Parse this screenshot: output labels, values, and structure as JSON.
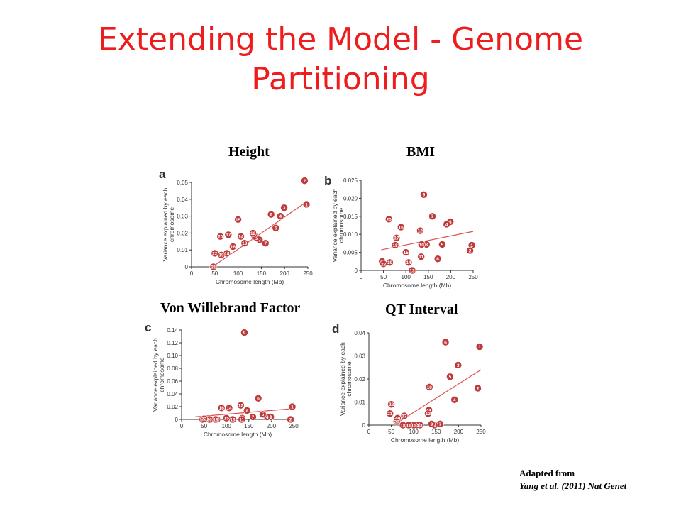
{
  "slide": {
    "title_line1": "Extending the Model - Genome",
    "title_line2": "Partitioning"
  },
  "captions": {
    "height": "Height",
    "bmi": "BMI",
    "vwf": "Von Willebrand Factor",
    "qt": "QT Interval"
  },
  "credit": {
    "line1": "Adapted from",
    "line2": "Yang et al. (2011) Nat Genet"
  },
  "colors": {
    "title": "#ee1c1c",
    "point_fill": "#bf3b3b",
    "point_label": "#ffffff",
    "regression_line": "#d9534f",
    "axis": "#333333"
  },
  "chart_data": [
    {
      "type": "scatter",
      "panel": "a",
      "xlabel": "Chromosome length (Mb)",
      "ylabel": "Variance explained by each chromosome",
      "xlim": [
        0,
        250
      ],
      "ylim": [
        0,
        0.05
      ],
      "xticks": [
        "0",
        "50",
        "100",
        "150",
        "200",
        "250"
      ],
      "yticks": [
        "0",
        "0.01",
        "0.02",
        "0.03",
        "0.04",
        "0.05"
      ],
      "points": [
        {
          "label": "1",
          "x": 247,
          "y": 0.037
        },
        {
          "label": "2",
          "x": 243,
          "y": 0.051
        },
        {
          "label": "3",
          "x": 199,
          "y": 0.035
        },
        {
          "label": "4",
          "x": 191,
          "y": 0.03
        },
        {
          "label": "5",
          "x": 181,
          "y": 0.023
        },
        {
          "label": "6",
          "x": 171,
          "y": 0.031
        },
        {
          "label": "7",
          "x": 159,
          "y": 0.014
        },
        {
          "label": "8",
          "x": 146,
          "y": 0.016
        },
        {
          "label": "9",
          "x": 140,
          "y": 0.017
        },
        {
          "label": "10",
          "x": 135,
          "y": 0.018
        },
        {
          "label": "11",
          "x": 134,
          "y": 0.019
        },
        {
          "label": "12",
          "x": 132,
          "y": 0.02
        },
        {
          "label": "13",
          "x": 114,
          "y": 0.014
        },
        {
          "label": "14",
          "x": 106,
          "y": 0.018
        },
        {
          "label": "15",
          "x": 100,
          "y": 0.028
        },
        {
          "label": "16",
          "x": 89,
          "y": 0.012
        },
        {
          "label": "17",
          "x": 79,
          "y": 0.019
        },
        {
          "label": "18",
          "x": 76,
          "y": 0.008
        },
        {
          "label": "19",
          "x": 64,
          "y": 0.007
        },
        {
          "label": "20",
          "x": 62,
          "y": 0.018
        },
        {
          "label": "21",
          "x": 47,
          "y": 0.0
        },
        {
          "label": "22",
          "x": 50,
          "y": 0.008
        }
      ],
      "fit_line": {
        "x": [
          45,
          250
        ],
        "y": [
          0.0,
          0.039
        ]
      }
    },
    {
      "type": "scatter",
      "panel": "b",
      "xlabel": "Chromosome length (Mb)",
      "ylabel": "Variance explained by each chromosome",
      "xlim": [
        0,
        250
      ],
      "ylim": [
        0,
        0.025
      ],
      "xticks": [
        "0",
        "50",
        "100",
        "150",
        "200",
        "250"
      ],
      "yticks": [
        "0",
        "0.005",
        "0.010",
        "0.015",
        "0.020",
        "0.025"
      ],
      "points": [
        {
          "label": "1",
          "x": 247,
          "y": 0.007
        },
        {
          "label": "2",
          "x": 243,
          "y": 0.0055
        },
        {
          "label": "3",
          "x": 199,
          "y": 0.0135
        },
        {
          "label": "4",
          "x": 191,
          "y": 0.0128
        },
        {
          "label": "5",
          "x": 181,
          "y": 0.0072
        },
        {
          "label": "6",
          "x": 171,
          "y": 0.0032
        },
        {
          "label": "7",
          "x": 159,
          "y": 0.015
        },
        {
          "label": "8",
          "x": 146,
          "y": 0.0072
        },
        {
          "label": "9",
          "x": 140,
          "y": 0.021
        },
        {
          "label": "10",
          "x": 135,
          "y": 0.0072
        },
        {
          "label": "11",
          "x": 134,
          "y": 0.0038
        },
        {
          "label": "12",
          "x": 132,
          "y": 0.011
        },
        {
          "label": "13",
          "x": 114,
          "y": 0.0
        },
        {
          "label": "14",
          "x": 106,
          "y": 0.0022
        },
        {
          "label": "15",
          "x": 100,
          "y": 0.005
        },
        {
          "label": "16",
          "x": 89,
          "y": 0.012
        },
        {
          "label": "17",
          "x": 79,
          "y": 0.009
        },
        {
          "label": "18",
          "x": 76,
          "y": 0.007
        },
        {
          "label": "19",
          "x": 64,
          "y": 0.0022
        },
        {
          "label": "20",
          "x": 62,
          "y": 0.0142
        },
        {
          "label": "21",
          "x": 47,
          "y": 0.0025
        },
        {
          "label": "22",
          "x": 50,
          "y": 0.0018
        }
      ],
      "fit_line": {
        "x": [
          45,
          250
        ],
        "y": [
          0.0057,
          0.0108
        ]
      }
    },
    {
      "type": "scatter",
      "panel": "c",
      "xlabel": "Chromosome length (Mb)",
      "ylabel": "Variance explained by each chromosome",
      "xlim": [
        0,
        250
      ],
      "ylim": [
        0,
        0.14
      ],
      "xticks": [
        "0",
        "50",
        "100",
        "150",
        "200",
        "250"
      ],
      "yticks": [
        "0",
        "0.02",
        "0.04",
        "0.06",
        "0.08",
        "0.10",
        "0.12",
        "0.14"
      ],
      "points": [
        {
          "label": "1",
          "x": 247,
          "y": 0.02
        },
        {
          "label": "2",
          "x": 243,
          "y": 0.0
        },
        {
          "label": "3",
          "x": 199,
          "y": 0.004
        },
        {
          "label": "4",
          "x": 191,
          "y": 0.004
        },
        {
          "label": "5",
          "x": 181,
          "y": 0.008
        },
        {
          "label": "6",
          "x": 171,
          "y": 0.033
        },
        {
          "label": "7",
          "x": 159,
          "y": 0.004
        },
        {
          "label": "8",
          "x": 146,
          "y": 0.014
        },
        {
          "label": "9",
          "x": 140,
          "y": 0.136
        },
        {
          "label": "10",
          "x": 135,
          "y": 0.002
        },
        {
          "label": "11",
          "x": 134,
          "y": 0.0
        },
        {
          "label": "12",
          "x": 132,
          "y": 0.022
        },
        {
          "label": "13",
          "x": 114,
          "y": 0.0
        },
        {
          "label": "14",
          "x": 106,
          "y": 0.018
        },
        {
          "label": "15",
          "x": 100,
          "y": 0.002
        },
        {
          "label": "16",
          "x": 89,
          "y": 0.018
        },
        {
          "label": "17",
          "x": 79,
          "y": 0.0
        },
        {
          "label": "18",
          "x": 76,
          "y": 0.0
        },
        {
          "label": "19",
          "x": 64,
          "y": 0.0
        },
        {
          "label": "20",
          "x": 62,
          "y": 0.0
        },
        {
          "label": "21",
          "x": 47,
          "y": 0.0
        },
        {
          "label": "22",
          "x": 50,
          "y": 0.001
        }
      ],
      "fit_line": {
        "x": [
          30,
          250
        ],
        "y": [
          0.004,
          0.017
        ]
      }
    },
    {
      "type": "scatter",
      "panel": "d",
      "xlabel": "Chromosome length (Mb)",
      "ylabel": "Variance explained by each chromosome",
      "xlim": [
        0,
        250
      ],
      "ylim": [
        0,
        0.04
      ],
      "xticks": [
        "0",
        "50",
        "100",
        "150",
        "200",
        "250"
      ],
      "yticks": [
        "0",
        "0.01",
        "0.02",
        "0.03",
        "0.04"
      ],
      "points": [
        {
          "label": "1",
          "x": 247,
          "y": 0.034
        },
        {
          "label": "2",
          "x": 243,
          "y": 0.016
        },
        {
          "label": "3",
          "x": 199,
          "y": 0.026
        },
        {
          "label": "4",
          "x": 191,
          "y": 0.011
        },
        {
          "label": "5",
          "x": 181,
          "y": 0.021
        },
        {
          "label": "6",
          "x": 171,
          "y": 0.036
        },
        {
          "label": "7",
          "x": 159,
          "y": 0.0005
        },
        {
          "label": "8",
          "x": 146,
          "y": 0.0
        },
        {
          "label": "9",
          "x": 140,
          "y": 0.0005
        },
        {
          "label": "10",
          "x": 135,
          "y": 0.0165
        },
        {
          "label": "11",
          "x": 134,
          "y": 0.0065
        },
        {
          "label": "12",
          "x": 132,
          "y": 0.005
        },
        {
          "label": "13",
          "x": 114,
          "y": 0.0
        },
        {
          "label": "14",
          "x": 106,
          "y": 0.0
        },
        {
          "label": "15",
          "x": 100,
          "y": 0.0
        },
        {
          "label": "16",
          "x": 89,
          "y": 0.0
        },
        {
          "label": "17",
          "x": 79,
          "y": 0.004
        },
        {
          "label": "18",
          "x": 76,
          "y": 0.0
        },
        {
          "label": "19",
          "x": 64,
          "y": 0.003
        },
        {
          "label": "20",
          "x": 62,
          "y": 0.0015
        },
        {
          "label": "21",
          "x": 47,
          "y": 0.005
        },
        {
          "label": "22",
          "x": 50,
          "y": 0.009
        }
      ],
      "fit_line": {
        "x": [
          55,
          250
        ],
        "y": [
          0.0,
          0.024
        ]
      }
    }
  ]
}
